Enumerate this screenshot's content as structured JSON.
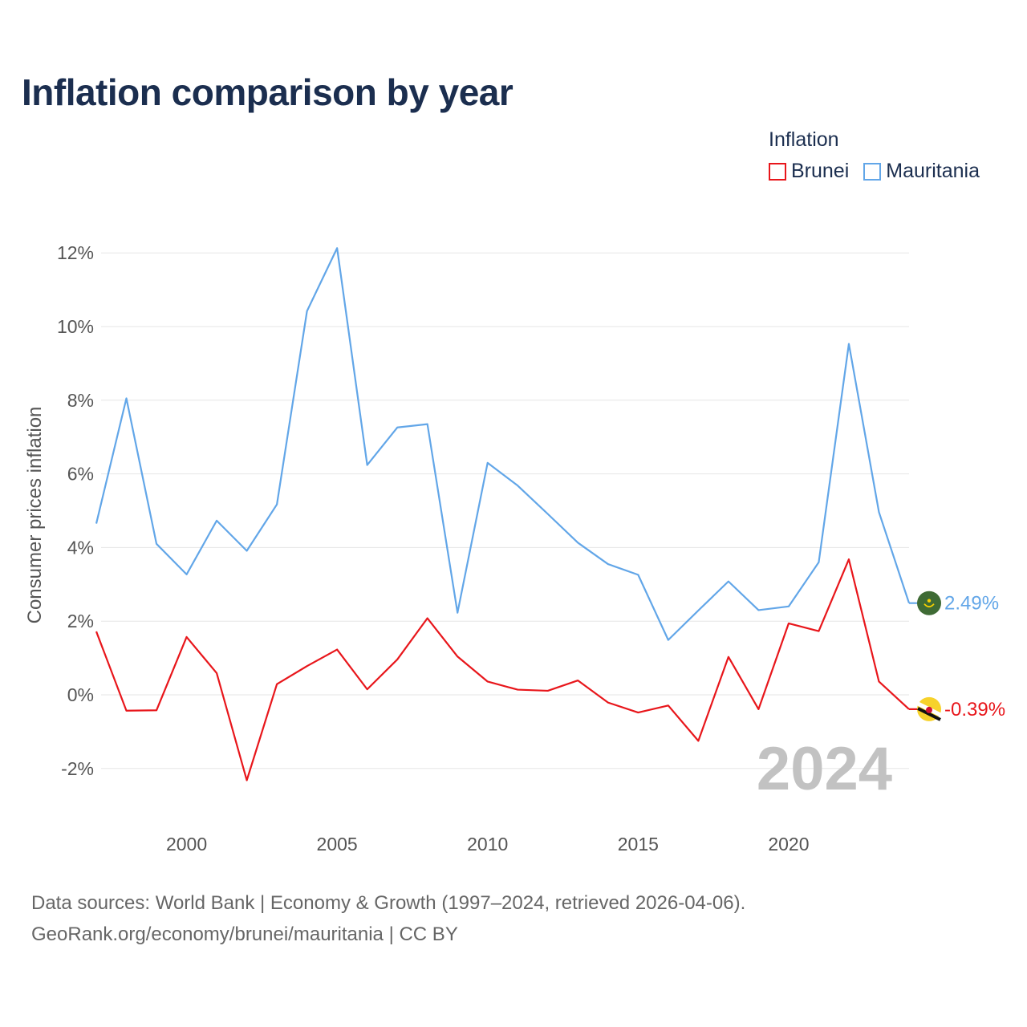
{
  "title": "Inflation comparison by year",
  "legend": {
    "title": "Inflation",
    "items": [
      {
        "name": "Brunei",
        "color": "#e8161b"
      },
      {
        "name": "Mauritania",
        "color": "#62a6e8"
      }
    ]
  },
  "source_lines": [
    "Data sources: World Bank | Economy & Growth (1997–2024, retrieved 2026-04-06).",
    "GeoRank.org/economy/brunei/mauritania | CC BY"
  ],
  "chart_data": {
    "type": "line",
    "title": "Inflation comparison by year",
    "xlabel": "",
    "ylabel": "Consumer prices inflation",
    "x": [
      1997,
      1998,
      1999,
      2000,
      2001,
      2002,
      2003,
      2004,
      2005,
      2006,
      2007,
      2008,
      2009,
      2010,
      2011,
      2012,
      2013,
      2014,
      2015,
      2016,
      2017,
      2018,
      2019,
      2020,
      2021,
      2022,
      2023,
      2024
    ],
    "series": [
      {
        "name": "Mauritania",
        "color": "#62a6e8",
        "end_label": "2.49%",
        "end_icon": "mauritania-flag-icon",
        "values": [
          4.65,
          8.05,
          4.1,
          3.27,
          4.73,
          3.91,
          5.17,
          10.42,
          12.13,
          6.24,
          7.26,
          7.35,
          2.23,
          6.3,
          5.68,
          4.91,
          4.13,
          3.55,
          3.26,
          1.49,
          2.29,
          3.08,
          2.3,
          2.4,
          3.6,
          9.53,
          4.96,
          2.49
        ]
      },
      {
        "name": "Brunei",
        "color": "#e8161b",
        "end_label": "-0.39%",
        "end_icon": "brunei-flag-icon",
        "values": [
          1.72,
          -0.43,
          -0.42,
          1.57,
          0.59,
          -2.32,
          0.29,
          0.78,
          1.23,
          0.15,
          0.96,
          2.08,
          1.04,
          0.36,
          0.14,
          0.11,
          0.39,
          -0.21,
          -0.48,
          -0.29,
          -1.25,
          1.03,
          -0.39,
          1.94,
          1.73,
          3.68,
          0.36,
          -0.39
        ]
      }
    ],
    "y_ticks": [
      -2,
      0,
      2,
      4,
      6,
      8,
      10,
      12
    ],
    "y_tick_labels": [
      "-2%",
      "0%",
      "2%",
      "4%",
      "6%",
      "8%",
      "10%",
      "12%"
    ],
    "x_ticks": [
      2000,
      2005,
      2010,
      2015,
      2020
    ],
    "x_tick_labels": [
      "2000",
      "2005",
      "2010",
      "2015",
      "2020"
    ],
    "ylim": [
      -3,
      12.5
    ],
    "xlim": [
      1997,
      2024
    ],
    "grid": true,
    "watermark_year": "2024"
  }
}
